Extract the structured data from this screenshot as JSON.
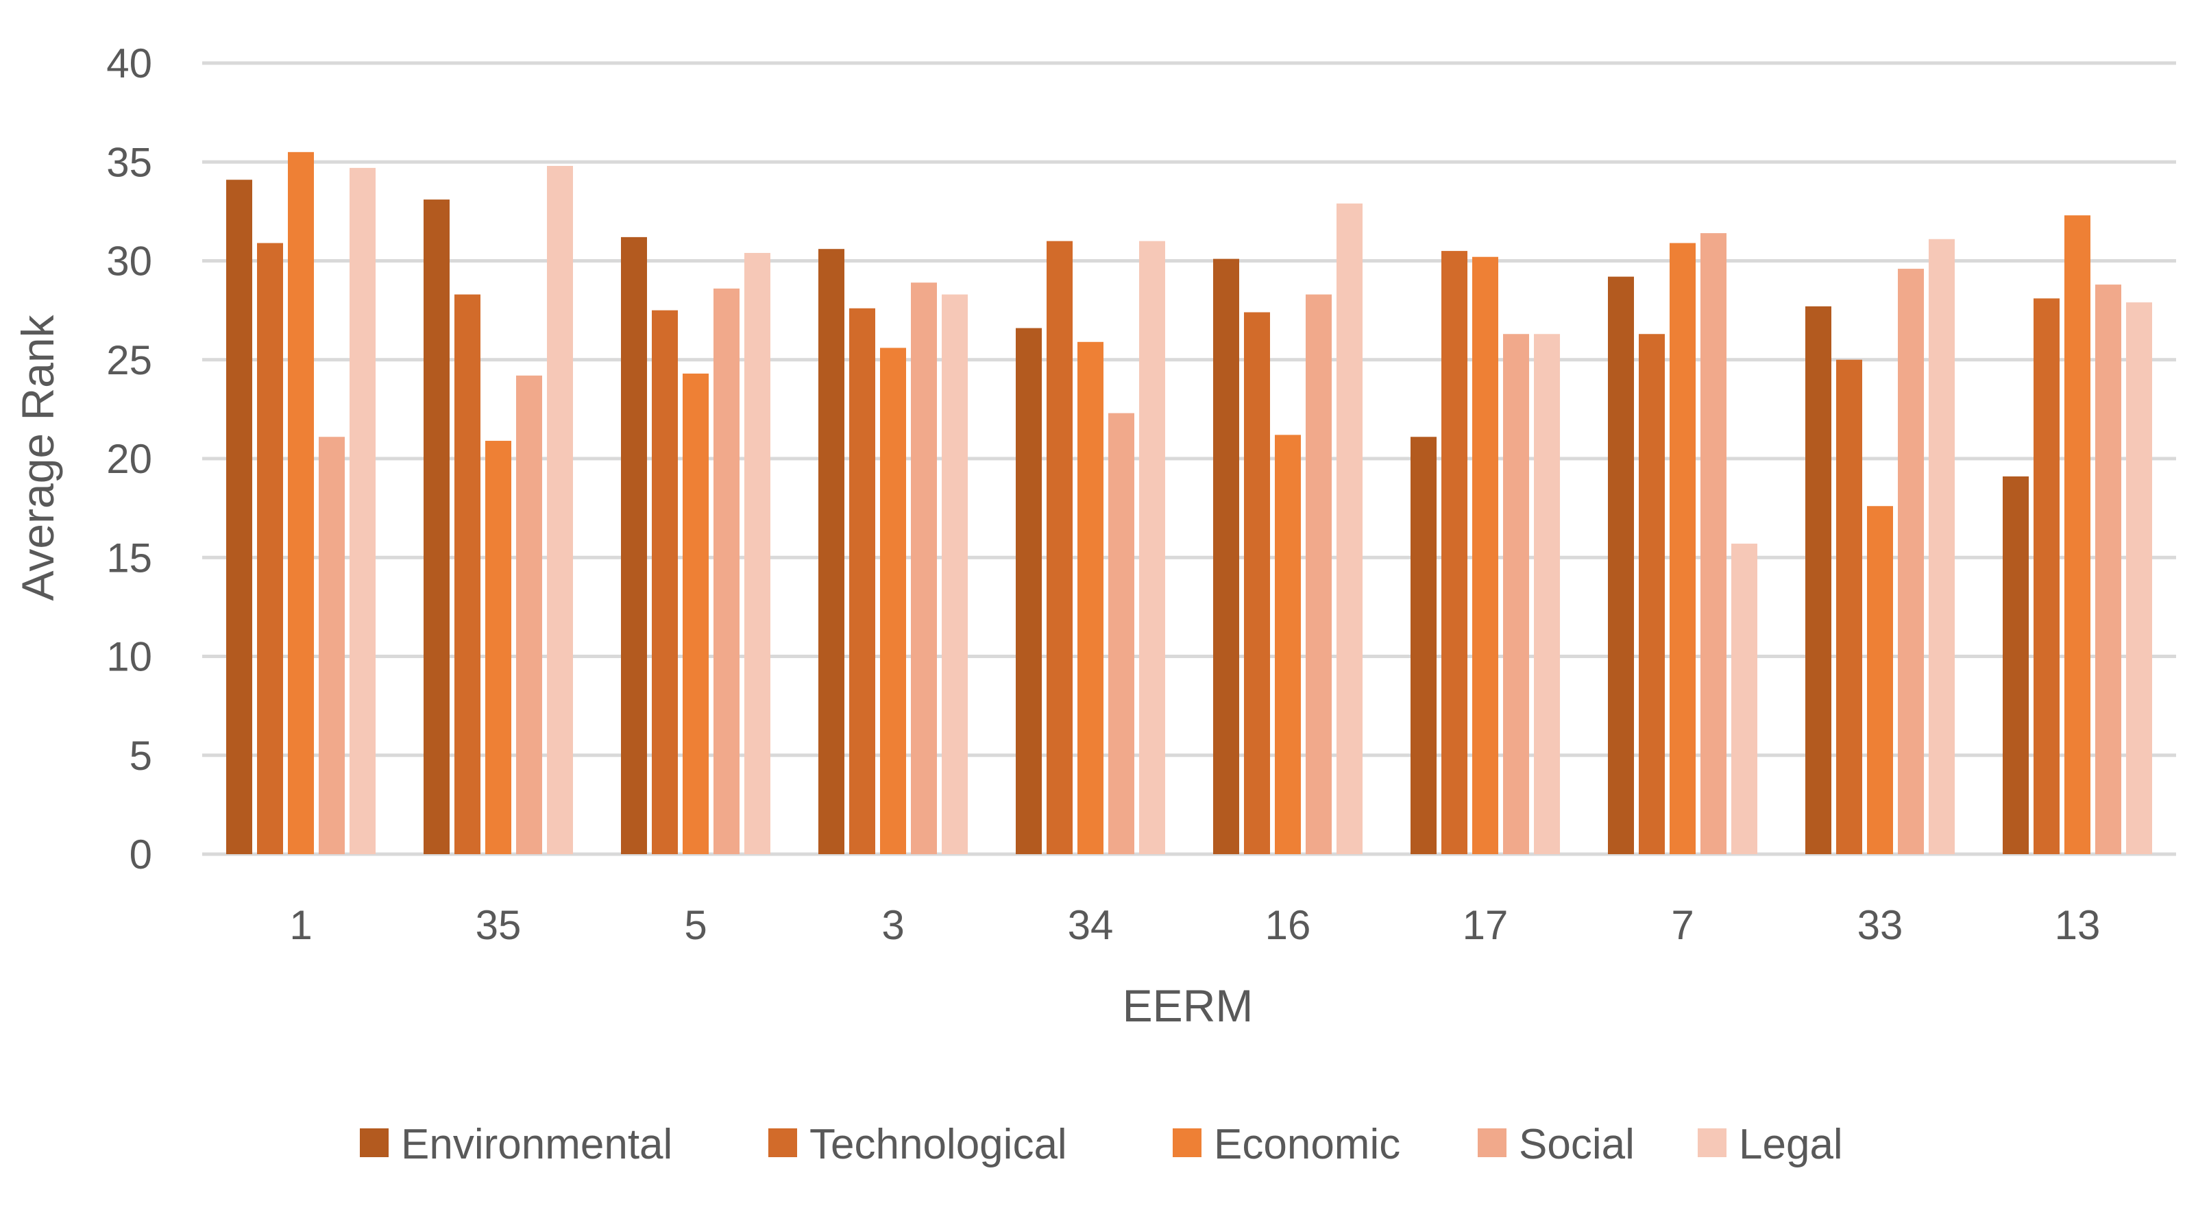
{
  "chart_data": {
    "type": "bar",
    "title": "",
    "xlabel": "EERM",
    "ylabel": "Average Rank",
    "ylim": [
      0,
      40
    ],
    "yticks": [
      "0",
      "5",
      "10",
      "15",
      "20",
      "25",
      "30",
      "35",
      "40"
    ],
    "grid": true,
    "legend_position": "bottom",
    "categories": [
      "1",
      "35",
      "5",
      "3",
      "34",
      "16",
      "17",
      "7",
      "33",
      "13"
    ],
    "series": [
      {
        "name": "Environmental",
        "color": "#b35a1f",
        "values": [
          34.1,
          33.1,
          31.2,
          30.6,
          26.6,
          30.1,
          21.1,
          29.2,
          27.7,
          19.1
        ]
      },
      {
        "name": "Technological",
        "color": "#d26b2a",
        "values": [
          30.9,
          28.3,
          27.5,
          27.6,
          31.0,
          27.4,
          30.5,
          26.3,
          25.0,
          28.1
        ]
      },
      {
        "name": "Economic",
        "color": "#ee8035",
        "values": [
          35.5,
          20.9,
          24.3,
          25.6,
          25.9,
          21.2,
          30.2,
          30.9,
          17.6,
          32.3
        ]
      },
      {
        "name": "Social",
        "color": "#f1a98b",
        "values": [
          21.1,
          24.2,
          28.6,
          28.9,
          22.3,
          28.3,
          26.3,
          31.4,
          29.6,
          28.8
        ]
      },
      {
        "name": "Legal",
        "color": "#f6c8b7",
        "values": [
          34.7,
          34.8,
          30.4,
          28.3,
          31.0,
          32.9,
          26.3,
          15.7,
          31.1,
          27.9
        ]
      }
    ]
  }
}
